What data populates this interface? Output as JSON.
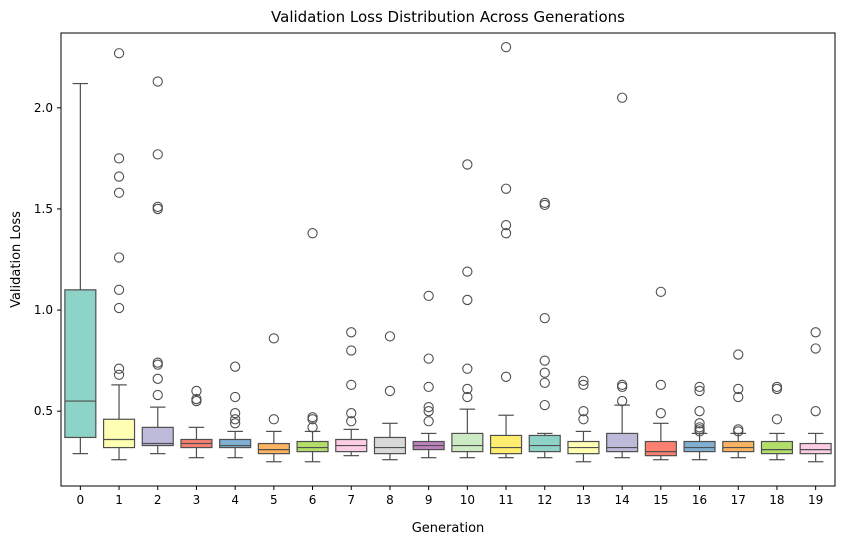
{
  "chart_data": {
    "type": "box",
    "title": "Validation Loss Distribution Across Generations",
    "xlabel": "Generation",
    "ylabel": "Validation Loss",
    "ylim": [
      0.13,
      2.37
    ],
    "yticks": [
      0.5,
      1.0,
      1.5,
      2.0
    ],
    "ytick_labels": [
      "0.5",
      "1.0",
      "1.5",
      "2.0"
    ],
    "categories": [
      "0",
      "1",
      "2",
      "3",
      "4",
      "5",
      "6",
      "7",
      "8",
      "9",
      "10",
      "11",
      "12",
      "13",
      "14",
      "15",
      "16",
      "17",
      "18",
      "19"
    ],
    "colors": [
      "#8dd3c7",
      "#ffffb3",
      "#bebada",
      "#fb8072",
      "#80b1d3",
      "#fdb462",
      "#b3de69",
      "#fccde5",
      "#d9d9d9",
      "#bc80bd",
      "#ccebc5",
      "#ffed6f",
      "#8dd3c7",
      "#ffffb3",
      "#bebada",
      "#fb8072",
      "#80b1d3",
      "#fdb462",
      "#b3de69",
      "#fccde5"
    ],
    "boxes": [
      {
        "whisker_low": 0.29,
        "q1": 0.37,
        "median": 0.55,
        "q3": 1.1,
        "whisker_high": 2.12,
        "outliers": []
      },
      {
        "whisker_low": 0.26,
        "q1": 0.32,
        "median": 0.36,
        "q3": 0.46,
        "whisker_high": 0.63,
        "outliers": [
          0.68,
          0.71,
          1.01,
          1.1,
          1.26,
          1.58,
          1.66,
          1.75,
          2.27
        ]
      },
      {
        "whisker_low": 0.29,
        "q1": 0.33,
        "median": 0.34,
        "q3": 0.42,
        "whisker_high": 0.52,
        "outliers": [
          0.58,
          0.66,
          0.73,
          0.74,
          1.5,
          1.51,
          1.77,
          2.13
        ]
      },
      {
        "whisker_low": 0.27,
        "q1": 0.32,
        "median": 0.34,
        "q3": 0.36,
        "whisker_high": 0.42,
        "outliers": [
          0.55,
          0.56,
          0.6
        ]
      },
      {
        "whisker_low": 0.27,
        "q1": 0.32,
        "median": 0.33,
        "q3": 0.36,
        "whisker_high": 0.4,
        "outliers": [
          0.44,
          0.46,
          0.49,
          0.57,
          0.72
        ]
      },
      {
        "whisker_low": 0.25,
        "q1": 0.29,
        "median": 0.31,
        "q3": 0.34,
        "whisker_high": 0.4,
        "outliers": [
          0.46,
          0.86
        ]
      },
      {
        "whisker_low": 0.25,
        "q1": 0.3,
        "median": 0.32,
        "q3": 0.35,
        "whisker_high": 0.4,
        "outliers": [
          0.42,
          0.46,
          0.47,
          1.38
        ]
      },
      {
        "whisker_low": 0.28,
        "q1": 0.3,
        "median": 0.33,
        "q3": 0.36,
        "whisker_high": 0.41,
        "outliers": [
          0.45,
          0.49,
          0.63,
          0.8,
          0.89
        ]
      },
      {
        "whisker_low": 0.26,
        "q1": 0.29,
        "median": 0.32,
        "q3": 0.37,
        "whisker_high": 0.44,
        "outliers": [
          0.6,
          0.87
        ]
      },
      {
        "whisker_low": 0.27,
        "q1": 0.31,
        "median": 0.33,
        "q3": 0.35,
        "whisker_high": 0.39,
        "outliers": [
          0.45,
          0.5,
          0.52,
          0.62,
          0.76,
          1.07
        ]
      },
      {
        "whisker_low": 0.27,
        "q1": 0.3,
        "median": 0.33,
        "q3": 0.39,
        "whisker_high": 0.51,
        "outliers": [
          0.57,
          0.61,
          0.71,
          1.05,
          1.19,
          1.72
        ]
      },
      {
        "whisker_low": 0.27,
        "q1": 0.29,
        "median": 0.32,
        "q3": 0.38,
        "whisker_high": 0.48,
        "outliers": [
          0.67,
          1.38,
          1.42,
          1.6,
          2.3
        ]
      },
      {
        "whisker_low": 0.27,
        "q1": 0.3,
        "median": 0.33,
        "q3": 0.38,
        "whisker_high": 0.39,
        "outliers": [
          0.53,
          0.64,
          0.69,
          0.75,
          0.96,
          1.52,
          1.53
        ]
      },
      {
        "whisker_low": 0.25,
        "q1": 0.29,
        "median": 0.32,
        "q3": 0.35,
        "whisker_high": 0.4,
        "outliers": [
          0.46,
          0.5,
          0.63,
          0.65
        ]
      },
      {
        "whisker_low": 0.27,
        "q1": 0.3,
        "median": 0.32,
        "q3": 0.39,
        "whisker_high": 0.53,
        "outliers": [
          0.55,
          0.62,
          0.63,
          2.05
        ]
      },
      {
        "whisker_low": 0.26,
        "q1": 0.28,
        "median": 0.3,
        "q3": 0.35,
        "whisker_high": 0.44,
        "outliers": [
          0.49,
          0.63,
          1.09
        ]
      },
      {
        "whisker_low": 0.26,
        "q1": 0.3,
        "median": 0.32,
        "q3": 0.35,
        "whisker_high": 0.39,
        "outliers": [
          0.4,
          0.41,
          0.42,
          0.44,
          0.5,
          0.6,
          0.62
        ]
      },
      {
        "whisker_low": 0.27,
        "q1": 0.3,
        "median": 0.32,
        "q3": 0.35,
        "whisker_high": 0.39,
        "outliers": [
          0.4,
          0.41,
          0.57,
          0.61,
          0.78
        ]
      },
      {
        "whisker_low": 0.26,
        "q1": 0.29,
        "median": 0.31,
        "q3": 0.35,
        "whisker_high": 0.39,
        "outliers": [
          0.46,
          0.61,
          0.62
        ]
      },
      {
        "whisker_low": 0.25,
        "q1": 0.29,
        "median": 0.31,
        "q3": 0.34,
        "whisker_high": 0.39,
        "outliers": [
          0.5,
          0.81,
          0.89
        ]
      }
    ],
    "grid": false,
    "legend": "none"
  }
}
